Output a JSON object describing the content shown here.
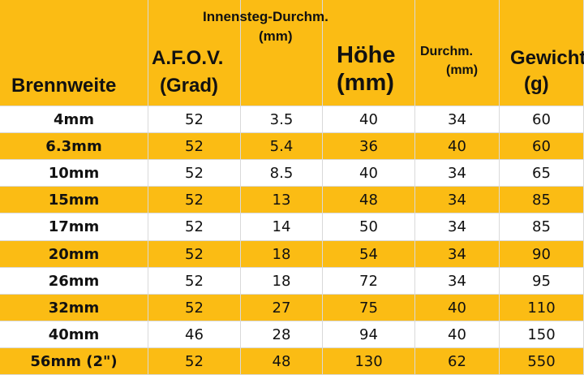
{
  "header": {
    "col0": "Brennweite",
    "col1_line1": "A.F.O.V.",
    "col1_line2": "(Grad)",
    "col2_line1": "Innensteg-Durchm.",
    "col2_line2": "(mm)",
    "col3_line1": "Höhe",
    "col3_line2": "(mm)",
    "col4_line1": "Durchm.",
    "col4_line2": "(mm)",
    "col5_line1": "Gewicht",
    "col5_line2": "(g)"
  },
  "rows": [
    [
      "4mm",
      "52",
      "3.5",
      "40",
      "34",
      "60"
    ],
    [
      "6.3mm",
      "52",
      "5.4",
      "36",
      "40",
      "60"
    ],
    [
      "10mm",
      "52",
      "8.5",
      "40",
      "34",
      "65"
    ],
    [
      "15mm",
      "52",
      "13",
      "48",
      "34",
      "85"
    ],
    [
      "17mm",
      "52",
      "14",
      "50",
      "34",
      "85"
    ],
    [
      "20mm",
      "52",
      "18",
      "54",
      "34",
      "90"
    ],
    [
      "26mm",
      "52",
      "18",
      "72",
      "34",
      "95"
    ],
    [
      "32mm",
      "52",
      "27",
      "75",
      "40",
      "110"
    ],
    [
      "40mm",
      "46",
      "28",
      "94",
      "40",
      "150"
    ],
    [
      "56mm (2\")",
      "52",
      "48",
      "130",
      "62",
      "550"
    ]
  ],
  "colors": {
    "accent": "#fbbc14",
    "row_light": "#ffffff"
  }
}
